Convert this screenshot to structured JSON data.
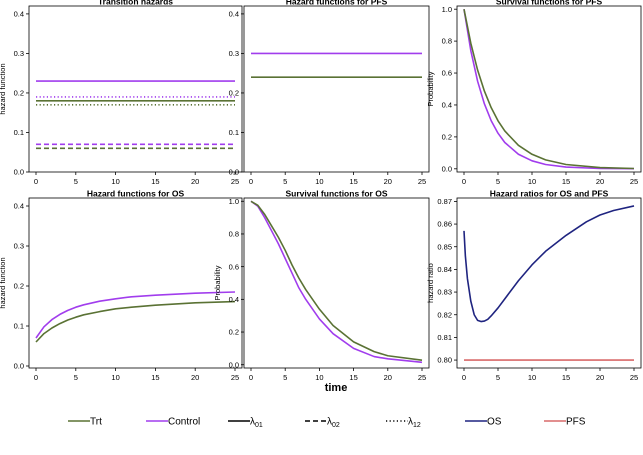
{
  "figure": {
    "xlabel": "time"
  },
  "colors": {
    "trt": "#5a7234",
    "control": "#a13ded",
    "os": "#1f2480",
    "pfs": "#d86a6a",
    "black": "#000000"
  },
  "legend": [
    {
      "label": "Trt",
      "kind": "line",
      "color": "#5a7234",
      "dash": "solid"
    },
    {
      "label": "Control",
      "kind": "line",
      "color": "#a13ded",
      "dash": "solid"
    },
    {
      "label": "λ",
      "sub": "01",
      "kind": "line",
      "color": "#000000",
      "dash": "solid"
    },
    {
      "label": "λ",
      "sub": "02",
      "kind": "line",
      "color": "#000000",
      "dash": "dashed"
    },
    {
      "label": "λ",
      "sub": "12",
      "kind": "line",
      "color": "#000000",
      "dash": "dotted"
    },
    {
      "label": "OS",
      "kind": "line",
      "color": "#1f2480",
      "dash": "solid"
    },
    {
      "label": "PFS",
      "kind": "line",
      "color": "#d86a6a",
      "dash": "solid"
    }
  ],
  "chart_data": [
    {
      "type": "line",
      "title": "Transition hazards",
      "xlabel": "",
      "ylabel": "hazard function",
      "xlim": [
        0,
        25
      ],
      "ylim": [
        0,
        0.42
      ],
      "xticks": [
        0,
        5,
        10,
        15,
        20,
        25
      ],
      "yticks": [
        0.0,
        0.1,
        0.2,
        0.3,
        0.4
      ],
      "series": [
        {
          "name": "Control λ01",
          "color": "#a13ded",
          "dash": "solid",
          "x": [
            0,
            25
          ],
          "y": [
            0.23,
            0.23
          ]
        },
        {
          "name": "Trt λ01",
          "color": "#5a7234",
          "dash": "solid",
          "x": [
            0,
            25
          ],
          "y": [
            0.18,
            0.18
          ]
        },
        {
          "name": "Control λ12",
          "color": "#a13ded",
          "dash": "dotted",
          "x": [
            0,
            25
          ],
          "y": [
            0.19,
            0.19
          ]
        },
        {
          "name": "Trt λ12",
          "color": "#5a7234",
          "dash": "dotted",
          "x": [
            0,
            25
          ],
          "y": [
            0.17,
            0.17
          ]
        },
        {
          "name": "Control λ02",
          "color": "#a13ded",
          "dash": "dashed",
          "x": [
            0,
            25
          ],
          "y": [
            0.07,
            0.07
          ]
        },
        {
          "name": "Trt λ02",
          "color": "#5a7234",
          "dash": "dashed",
          "x": [
            0,
            25
          ],
          "y": [
            0.06,
            0.06
          ]
        }
      ]
    },
    {
      "type": "line",
      "title": "Hazard functions for PFS",
      "xlabel": "",
      "ylabel": "",
      "xlim": [
        0,
        25
      ],
      "ylim": [
        0,
        0.42
      ],
      "xticks": [
        0,
        5,
        10,
        15,
        20,
        25
      ],
      "yticks": [
        0.0,
        0.1,
        0.2,
        0.3,
        0.4
      ],
      "series": [
        {
          "name": "Control",
          "color": "#a13ded",
          "dash": "solid",
          "x": [
            0,
            25
          ],
          "y": [
            0.3,
            0.3
          ]
        },
        {
          "name": "Trt",
          "color": "#5a7234",
          "dash": "solid",
          "x": [
            0,
            25
          ],
          "y": [
            0.24,
            0.24
          ]
        }
      ]
    },
    {
      "type": "line",
      "title": "Survival functions for PFS",
      "xlabel": "",
      "ylabel": "Probability",
      "xlim": [
        0,
        25
      ],
      "ylim": [
        -0.02,
        1.02
      ],
      "xticks": [
        0,
        5,
        10,
        15,
        20,
        25
      ],
      "yticks": [
        0.0,
        0.2,
        0.4,
        0.6,
        0.8,
        1.0
      ],
      "series": [
        {
          "name": "Control",
          "color": "#a13ded",
          "dash": "solid",
          "x": [
            0,
            1,
            2,
            3,
            4,
            5,
            6,
            8,
            10,
            12,
            15,
            20,
            25
          ],
          "y": [
            1.0,
            0.741,
            0.549,
            0.407,
            0.301,
            0.223,
            0.165,
            0.091,
            0.05,
            0.027,
            0.011,
            0.002,
            0.001
          ]
        },
        {
          "name": "Trt",
          "color": "#5a7234",
          "dash": "solid",
          "x": [
            0,
            1,
            2,
            3,
            4,
            5,
            6,
            8,
            10,
            12,
            15,
            20,
            25
          ],
          "y": [
            1.0,
            0.787,
            0.619,
            0.487,
            0.383,
            0.301,
            0.237,
            0.147,
            0.091,
            0.056,
            0.027,
            0.008,
            0.002
          ]
        }
      ]
    },
    {
      "type": "line",
      "title": "Hazard functions for OS",
      "xlabel": "",
      "ylabel": "hazard function",
      "xlim": [
        0,
        25
      ],
      "ylim": [
        -0.005,
        0.42
      ],
      "xticks": [
        0,
        5,
        10,
        15,
        20,
        25
      ],
      "yticks": [
        0.0,
        0.1,
        0.2,
        0.3,
        0.4
      ],
      "series": [
        {
          "name": "Control",
          "color": "#a13ded",
          "dash": "solid",
          "x": [
            0,
            1,
            2,
            3,
            4,
            5,
            6,
            8,
            10,
            12,
            15,
            20,
            25
          ],
          "y": [
            0.07,
            0.098,
            0.116,
            0.129,
            0.139,
            0.147,
            0.153,
            0.162,
            0.168,
            0.173,
            0.177,
            0.182,
            0.185
          ]
        },
        {
          "name": "Trt",
          "color": "#5a7234",
          "dash": "solid",
          "x": [
            0,
            1,
            2,
            3,
            4,
            5,
            6,
            8,
            10,
            12,
            15,
            20,
            25
          ],
          "y": [
            0.06,
            0.081,
            0.095,
            0.106,
            0.115,
            0.122,
            0.128,
            0.136,
            0.143,
            0.147,
            0.152,
            0.158,
            0.161
          ]
        }
      ]
    },
    {
      "type": "line",
      "title": "Survival functions for OS",
      "xlabel": "",
      "ylabel": "Probability",
      "xlim": [
        0,
        25
      ],
      "ylim": [
        -0.02,
        1.02
      ],
      "xticks": [
        0,
        5,
        10,
        15,
        20,
        25
      ],
      "yticks": [
        0.0,
        0.2,
        0.4,
        0.6,
        0.8,
        1.0
      ],
      "series": [
        {
          "name": "Control",
          "color": "#a13ded",
          "dash": "solid",
          "x": [
            0,
            1,
            2,
            3,
            4,
            5,
            6,
            7,
            8,
            10,
            12,
            15,
            18,
            20,
            25
          ],
          "y": [
            1.0,
            0.97,
            0.9,
            0.82,
            0.74,
            0.65,
            0.56,
            0.47,
            0.4,
            0.28,
            0.19,
            0.1,
            0.05,
            0.036,
            0.015
          ]
        },
        {
          "name": "Trt",
          "color": "#5a7234",
          "dash": "solid",
          "x": [
            0,
            1,
            2,
            3,
            4,
            5,
            6,
            7,
            8,
            10,
            12,
            15,
            18,
            20,
            25
          ],
          "y": [
            1.0,
            0.975,
            0.92,
            0.85,
            0.78,
            0.7,
            0.61,
            0.53,
            0.46,
            0.34,
            0.24,
            0.14,
            0.08,
            0.055,
            0.028
          ]
        }
      ]
    },
    {
      "type": "line",
      "title": "Hazard ratios for OS and PFS",
      "xlabel": "",
      "ylabel": "hazard ratio",
      "xlim": [
        0,
        25
      ],
      "ylim": [
        0.7965,
        0.8715
      ],
      "xticks": [
        0,
        5,
        10,
        15,
        20,
        25
      ],
      "yticks": [
        0.8,
        0.81,
        0.82,
        0.83,
        0.84,
        0.85,
        0.86,
        0.87
      ],
      "series": [
        {
          "name": "OS",
          "color": "#1f2480",
          "dash": "solid",
          "x": [
            0,
            0.2,
            0.5,
            1,
            1.5,
            2,
            2.5,
            3,
            3.5,
            4,
            5,
            6,
            8,
            10,
            12,
            15,
            18,
            20,
            22,
            25
          ],
          "y": [
            0.857,
            0.846,
            0.836,
            0.826,
            0.82,
            0.8175,
            0.817,
            0.8172,
            0.818,
            0.8195,
            0.823,
            0.827,
            0.835,
            0.842,
            0.848,
            0.855,
            0.861,
            0.864,
            0.866,
            0.868
          ]
        },
        {
          "name": "PFS",
          "color": "#d86a6a",
          "dash": "solid",
          "x": [
            0,
            25
          ],
          "y": [
            0.8,
            0.8
          ]
        }
      ]
    }
  ]
}
